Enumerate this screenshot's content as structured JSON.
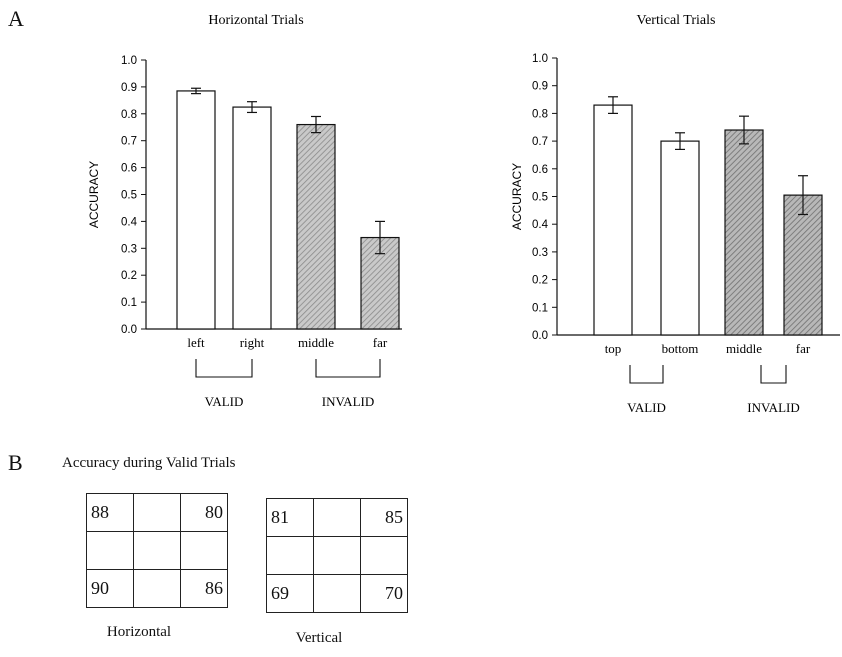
{
  "panelA": {
    "letter": "A"
  },
  "panelB": {
    "letter": "B",
    "title": "Accuracy during Valid Trials"
  },
  "chart_data": [
    {
      "type": "bar",
      "title": "Horizontal Trials",
      "ylabel": "ACCURACY",
      "xlabel": "",
      "ylim": [
        0.0,
        1.0
      ],
      "yticks": [
        "0.0",
        "0.1",
        "0.2",
        "0.3",
        "0.4",
        "0.5",
        "0.6",
        "0.7",
        "0.8",
        "0.9",
        "1.0"
      ],
      "categories": [
        "left",
        "right",
        "middle",
        "far"
      ],
      "values": [
        0.885,
        0.825,
        0.76,
        0.34
      ],
      "errors": [
        0.01,
        0.02,
        0.03,
        0.06
      ],
      "groups": [
        {
          "label": "VALID",
          "members": [
            "left",
            "right"
          ],
          "fill": "white"
        },
        {
          "label": "INVALID",
          "members": [
            "middle",
            "far"
          ],
          "fill": "hatched-gray"
        }
      ],
      "grid": false
    },
    {
      "type": "bar",
      "title": "Vertical Trials",
      "ylabel": "ACCURACY",
      "xlabel": "",
      "ylim": [
        0.0,
        1.0
      ],
      "yticks": [
        "0.0",
        "0.1",
        "0.2",
        "0.3",
        "0.4",
        "0.5",
        "0.6",
        "0.7",
        "0.8",
        "0.9",
        "1.0"
      ],
      "categories": [
        "top",
        "bottom",
        "middle",
        "far"
      ],
      "values": [
        0.83,
        0.7,
        0.74,
        0.505
      ],
      "errors": [
        0.03,
        0.03,
        0.05,
        0.07
      ],
      "groups": [
        {
          "label": "VALID",
          "members": [
            "top",
            "bottom"
          ],
          "fill": "white"
        },
        {
          "label": "INVALID",
          "members": [
            "middle",
            "far"
          ],
          "fill": "hatched-gray"
        }
      ],
      "grid": false
    },
    {
      "type": "table",
      "label": "Horizontal",
      "rows": [
        [
          "88",
          "",
          "80"
        ],
        [
          "",
          "",
          ""
        ],
        [
          "90",
          "",
          "86"
        ]
      ]
    },
    {
      "type": "table",
      "label": "Vertical",
      "rows": [
        [
          "81",
          "",
          "85"
        ],
        [
          "",
          "",
          ""
        ],
        [
          "69",
          "",
          "70"
        ]
      ]
    }
  ]
}
